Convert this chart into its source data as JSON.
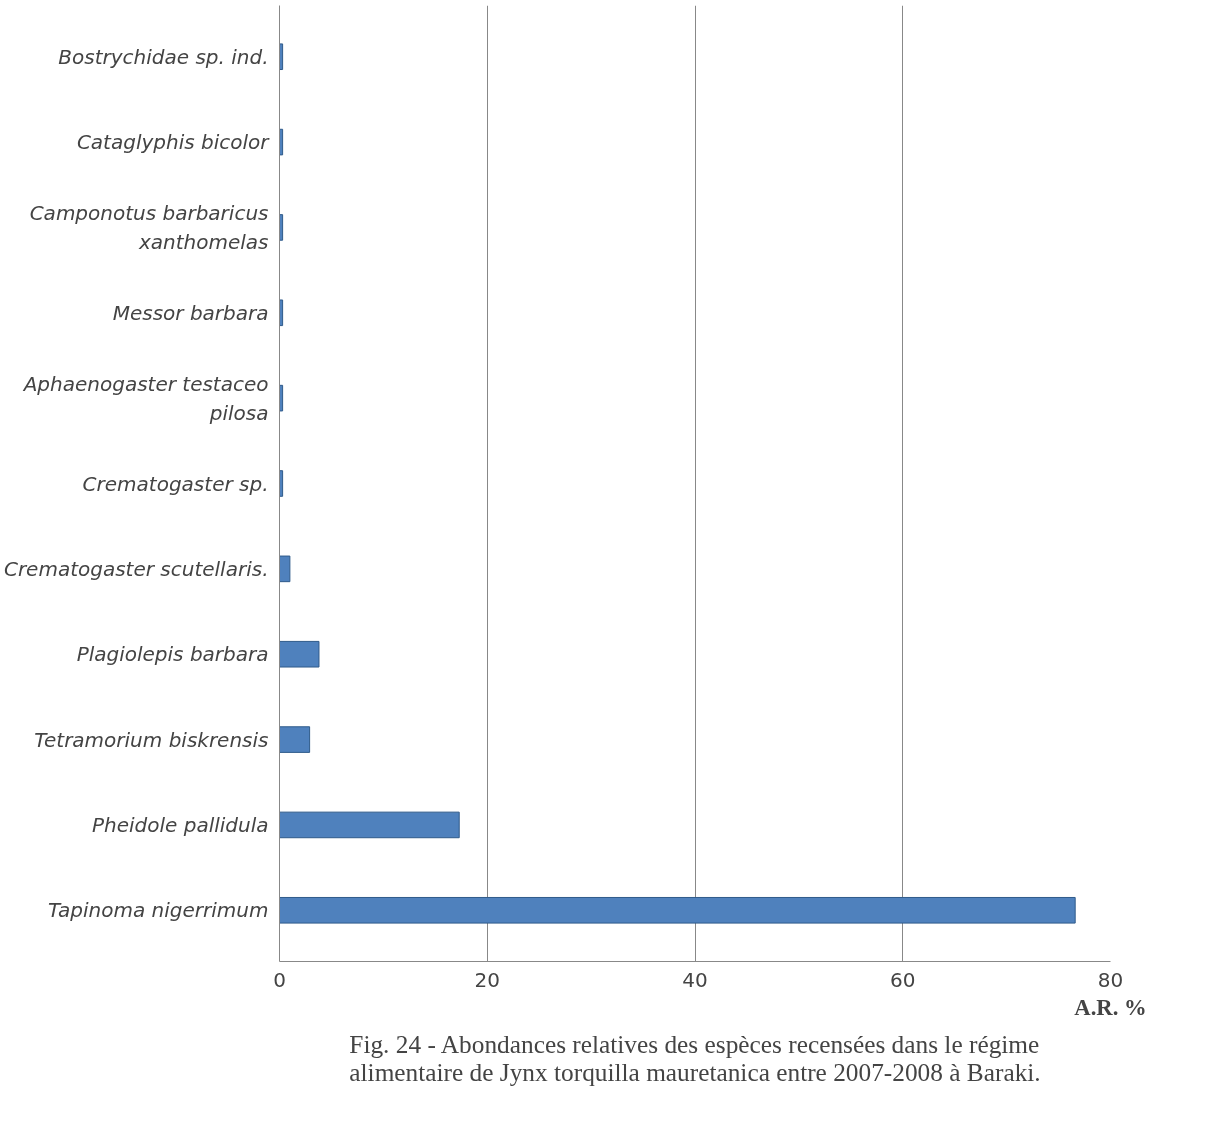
{
  "chart_data": {
    "type": "bar",
    "orientation": "horizontal",
    "title": "Fig. 24 - Abondances relatives des espèces recensées dans le régime alimentaire de Jynx torquilla mauretanica entre 2007-2008 à Baraki.",
    "xlabel": "A.R. %",
    "categories": [
      "Bostrychidae sp. ind.",
      "Cataglyphis bicolor",
      "Camponotus barbaricus xanthomelas",
      "Messor barbara",
      "Aphaenogaster testaceo pilosa",
      "Crematogaster sp.",
      "Crematogaster scutellaris.",
      "Plagiolepis barbara",
      "Tetramorium biskrensis",
      "Pheidole pallidula",
      "Tapinoma nigerrimum"
    ],
    "values": [
      0.3,
      0.3,
      0.3,
      0.3,
      0.3,
      0.3,
      1.0,
      3.8,
      2.9,
      17.3,
      76.6
    ],
    "color": "#4f81bd",
    "xlim": [
      0,
      80
    ],
    "xticks": [
      0,
      20,
      40,
      60,
      80
    ],
    "grid": "x"
  }
}
